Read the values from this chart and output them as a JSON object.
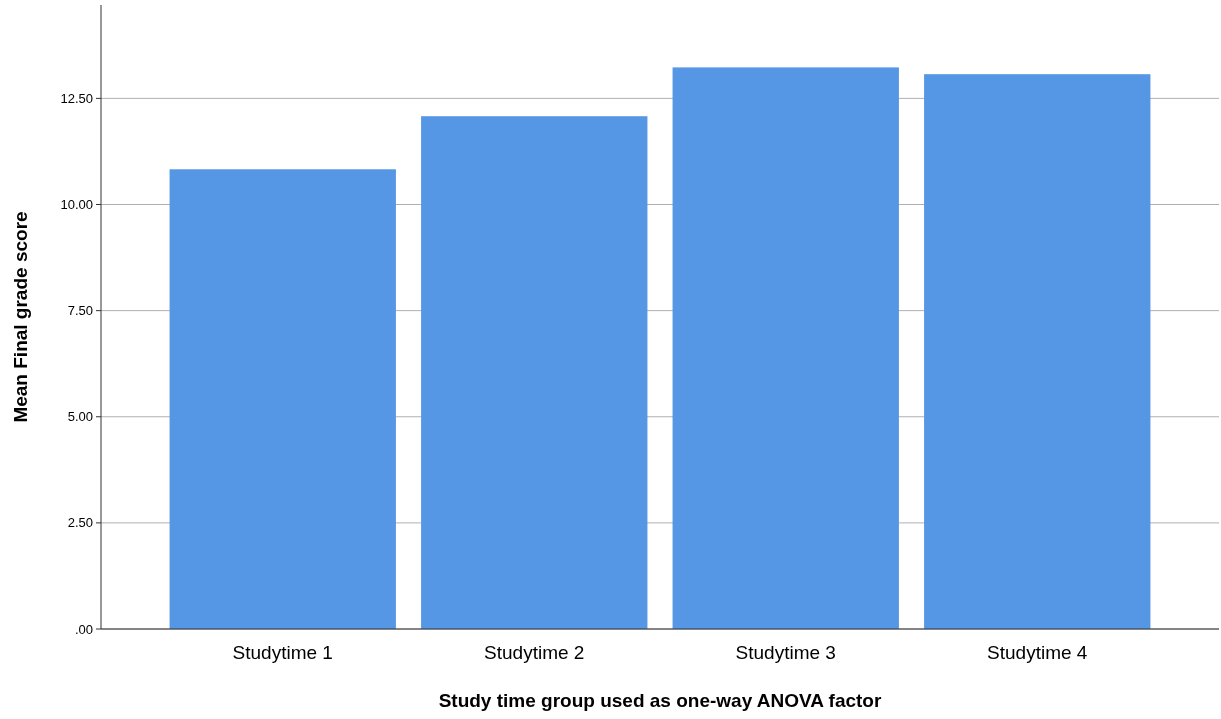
{
  "chart_data": {
    "type": "bar",
    "xlabel": "Study time group used as one-way ANOVA factor",
    "ylabel": "Mean Final grade score",
    "categories": [
      "Studytime 1",
      "Studytime 2",
      "Studytime 3",
      "Studytime 4"
    ],
    "values": [
      10.83,
      12.08,
      13.23,
      13.07
    ],
    "color": "#5597e4",
    "ylim": [
      0,
      14.7
    ],
    "yticks": [
      {
        "value": 0,
        "label": ".00"
      },
      {
        "value": 2.5,
        "label": "2.50"
      },
      {
        "value": 5,
        "label": "5.00"
      },
      {
        "value": 7.5,
        "label": "7.50"
      },
      {
        "value": 10,
        "label": "10.00"
      },
      {
        "value": 12.5,
        "label": "12.50"
      }
    ],
    "grid": "y"
  }
}
